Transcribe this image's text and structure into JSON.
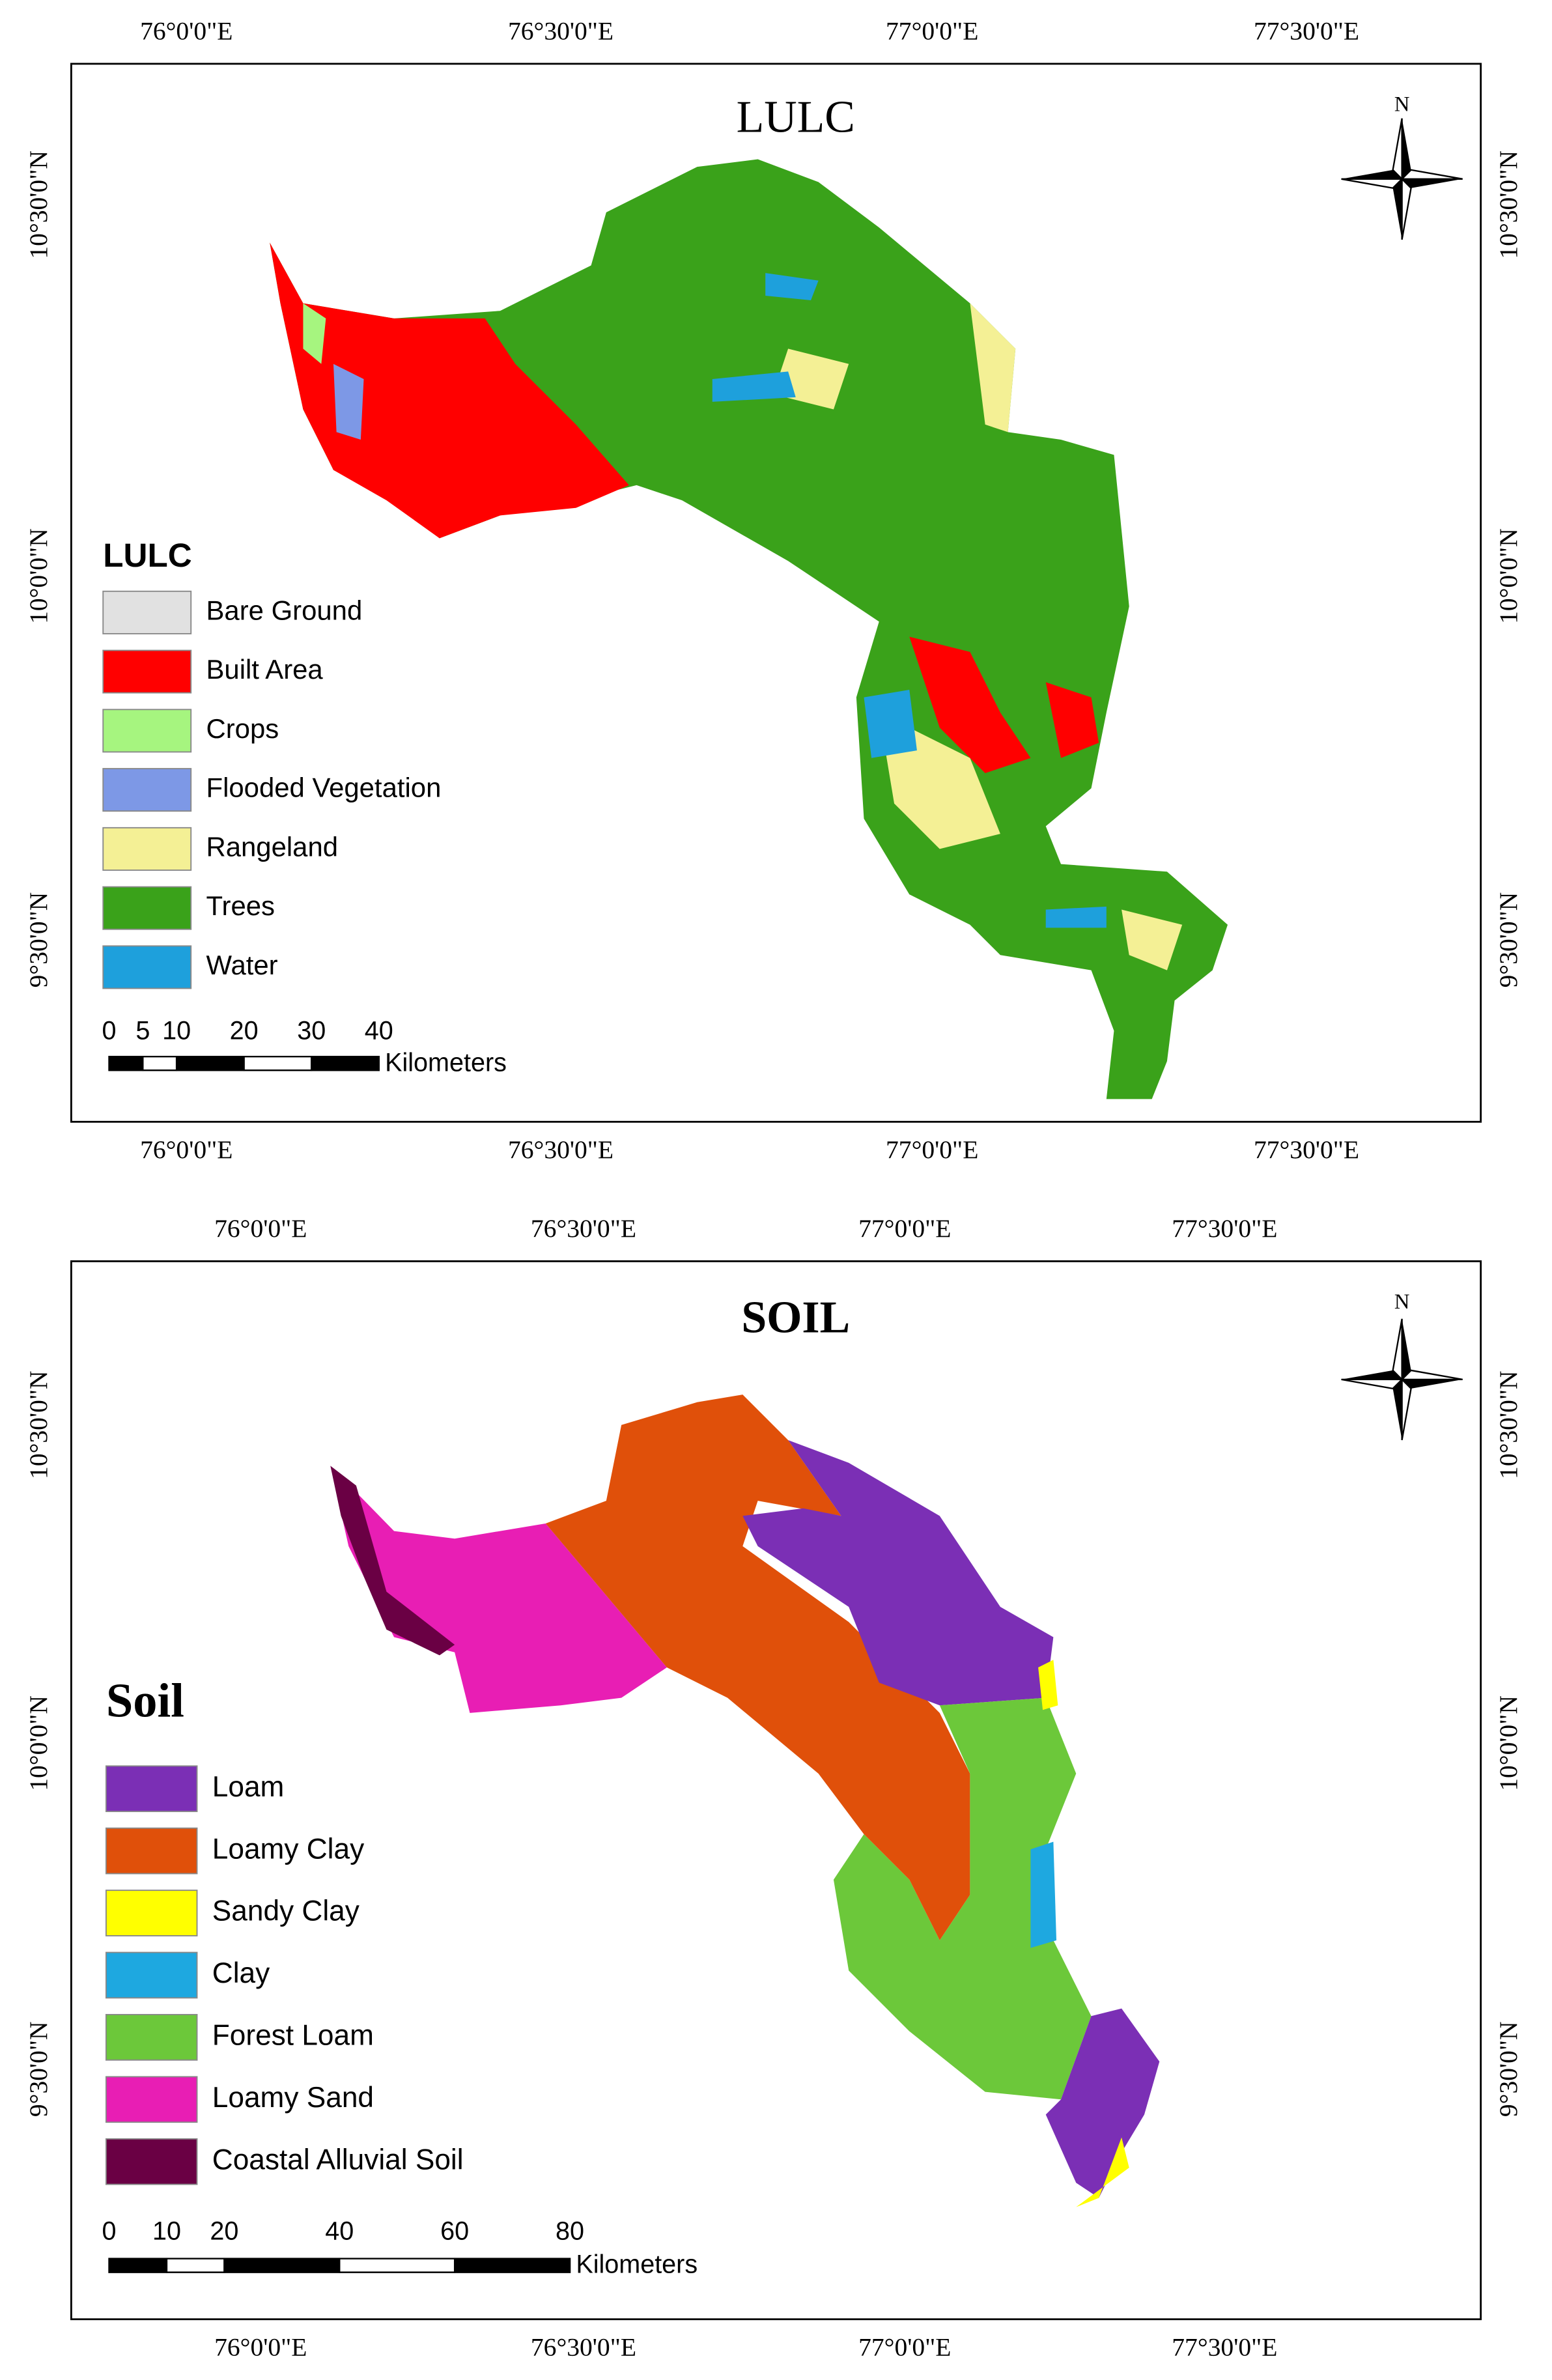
{
  "panels": [
    {
      "title": "LULC",
      "legend_title": "LULC",
      "legend": [
        {
          "label": "Bare Ground",
          "color": "#e1e1e1"
        },
        {
          "label": "Built Area",
          "color": "#ff0000"
        },
        {
          "label": "Crops",
          "color": "#a6f57f"
        },
        {
          "label": "Flooded Vegetation",
          "color": "#7d98e6"
        },
        {
          "label": "Rangeland",
          "color": "#f4f095"
        },
        {
          "label": "Trees",
          "color": "#3aa21a"
        },
        {
          "label": "Water",
          "color": "#1ea0dc"
        }
      ],
      "scale": {
        "ticks": [
          0,
          5,
          10,
          20,
          30,
          40
        ],
        "unit": "Kilometers"
      },
      "north": "N",
      "top_labels": [
        "76°0'0\"E",
        "76°30'0\"E",
        "77°0'0\"E",
        "77°30'0\"E"
      ],
      "bottom_labels": [
        "76°0'0\"E",
        "76°30'0\"E",
        "77°0'0\"E",
        "77°30'0\"E"
      ],
      "left_labels": [
        "10°30'0\"N",
        "10°0'0\"N",
        "9°30'0\"N"
      ],
      "right_labels": [
        "10°30'0\"N",
        "10°0'0\"N",
        "9°30'0\"N"
      ]
    },
    {
      "title": "SOIL",
      "legend_title": "Soil",
      "legend": [
        {
          "label": "Loam",
          "color": "#7b2fb5"
        },
        {
          "label": "Loamy Clay",
          "color": "#e0500a"
        },
        {
          "label": "Sandy Clay",
          "color": "#ffff00"
        },
        {
          "label": "Clay",
          "color": "#1ea8e0"
        },
        {
          "label": "Forest Loam",
          "color": "#6cc83a"
        },
        {
          "label": "Loamy Sand",
          "color": "#e81eb4"
        },
        {
          "label": "Coastal Alluvial Soil",
          "color": "#6a0044"
        }
      ],
      "scale": {
        "ticks": [
          0,
          10,
          20,
          40,
          60,
          80
        ],
        "unit": "Kilometers"
      },
      "north": "N",
      "top_labels": [
        "76°0'0\"E",
        "76°30'0\"E",
        "77°0'0\"E",
        "77°30'0\"E"
      ],
      "bottom_labels": [
        "76°0'0\"E",
        "76°30'0\"E",
        "77°0'0\"E",
        "77°30'0\"E"
      ],
      "left_labels": [
        "10°30'0\"N",
        "10°0'0\"N",
        "9°30'0\"N"
      ],
      "right_labels": [
        "10°30'0\"N",
        "10°0'0\"N",
        "9°30'0\"N"
      ]
    }
  ]
}
